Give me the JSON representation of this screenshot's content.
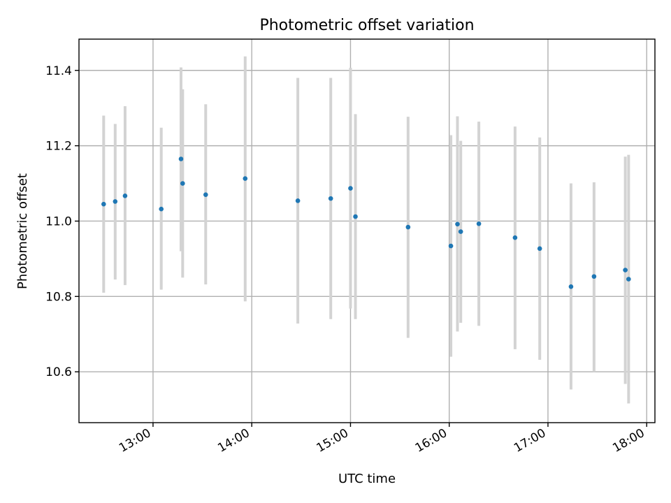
{
  "chart_data": {
    "type": "scatter",
    "title": "Photometric offset variation",
    "xlabel": "UTC time",
    "ylabel": "Photometric offset",
    "x_ticks": [
      "13:00",
      "14:00",
      "15:00",
      "16:00",
      "17:00",
      "18:00"
    ],
    "y_ticks": [
      "10.6",
      "10.8",
      "11.0",
      "11.2",
      "11.4"
    ],
    "xlim": [
      "12:15",
      "18:05"
    ],
    "ylim": [
      10.465,
      11.483
    ],
    "grid": true,
    "point_color": "#1f77b4",
    "errorbar_color": "#d3d3d3",
    "points": [
      {
        "t": "12:30",
        "y": 11.045,
        "lo": 10.81,
        "hi": 11.28
      },
      {
        "t": "12:37",
        "y": 11.052,
        "lo": 10.845,
        "hi": 11.258
      },
      {
        "t": "12:43",
        "y": 11.067,
        "lo": 10.83,
        "hi": 11.305
      },
      {
        "t": "13:05",
        "y": 11.032,
        "lo": 10.818,
        "hi": 11.248
      },
      {
        "t": "13:17",
        "y": 11.165,
        "lo": 10.92,
        "hi": 11.408
      },
      {
        "t": "13:18",
        "y": 11.1,
        "lo": 10.85,
        "hi": 11.35
      },
      {
        "t": "13:32",
        "y": 11.07,
        "lo": 10.832,
        "hi": 11.31
      },
      {
        "t": "13:56",
        "y": 11.113,
        "lo": 10.787,
        "hi": 11.437
      },
      {
        "t": "14:28",
        "y": 11.054,
        "lo": 10.728,
        "hi": 11.38
      },
      {
        "t": "14:48",
        "y": 11.06,
        "lo": 10.74,
        "hi": 11.38
      },
      {
        "t": "15:00",
        "y": 11.087,
        "lo": 10.768,
        "hi": 11.407
      },
      {
        "t": "15:03",
        "y": 11.012,
        "lo": 10.74,
        "hi": 11.284
      },
      {
        "t": "15:35",
        "y": 10.984,
        "lo": 10.69,
        "hi": 11.277
      },
      {
        "t": "16:01",
        "y": 10.934,
        "lo": 10.64,
        "hi": 11.228
      },
      {
        "t": "16:05",
        "y": 10.992,
        "lo": 10.707,
        "hi": 11.278
      },
      {
        "t": "16:07",
        "y": 10.972,
        "lo": 10.73,
        "hi": 11.213
      },
      {
        "t": "16:18",
        "y": 10.993,
        "lo": 10.722,
        "hi": 11.264
      },
      {
        "t": "16:40",
        "y": 10.956,
        "lo": 10.66,
        "hi": 11.251
      },
      {
        "t": "16:55",
        "y": 10.927,
        "lo": 10.632,
        "hi": 11.222
      },
      {
        "t": "17:14",
        "y": 10.826,
        "lo": 10.553,
        "hi": 11.1
      },
      {
        "t": "17:28",
        "y": 10.853,
        "lo": 10.6,
        "hi": 11.103
      },
      {
        "t": "17:47",
        "y": 10.87,
        "lo": 10.568,
        "hi": 11.171
      },
      {
        "t": "17:49",
        "y": 10.846,
        "lo": 10.516,
        "hi": 11.176
      }
    ]
  }
}
